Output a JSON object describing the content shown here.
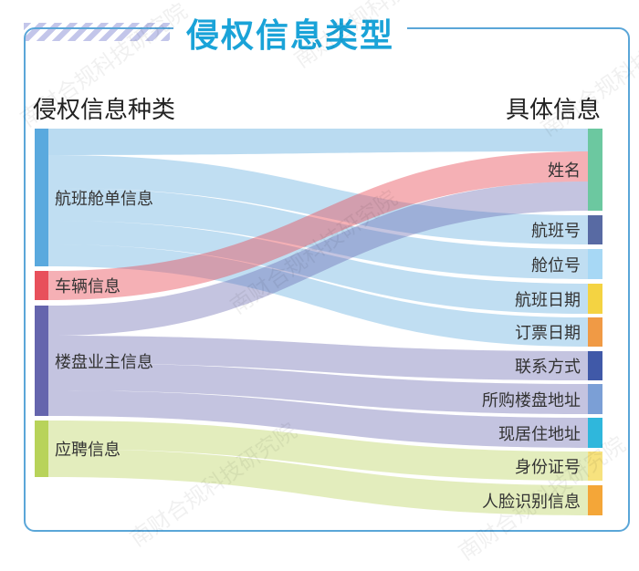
{
  "title": "侵权信息类型",
  "left_header": "侵权信息种类",
  "right_header": "具体信息",
  "sources": [
    {
      "name": "航班舱单信息",
      "color": "#5aa9de"
    },
    {
      "name": "车辆信息",
      "color": "#e8505b"
    },
    {
      "name": "楼盘业主信息",
      "color": "#6565ad"
    },
    {
      "name": "应聘信息",
      "color": "#b8d35a"
    }
  ],
  "targets": [
    {
      "name": "姓名",
      "color": "#6cc8a0"
    },
    {
      "name": "航班号",
      "color": "#586aa3"
    },
    {
      "name": "舱位号",
      "color": "#a7d8f5"
    },
    {
      "name": "航班日期",
      "color": "#f4d342"
    },
    {
      "name": "订票日期",
      "color": "#f09a45"
    },
    {
      "name": "联系方式",
      "color": "#4059a8"
    },
    {
      "name": "所购楼盘地址",
      "color": "#7b9fd6"
    },
    {
      "name": "现居住地址",
      "color": "#2fb7dc"
    },
    {
      "name": "身份证号",
      "color": "#f7e27e"
    },
    {
      "name": "人脸识别信息",
      "color": "#f4a638"
    }
  ],
  "watermark": "南财合规科技研究院"
}
